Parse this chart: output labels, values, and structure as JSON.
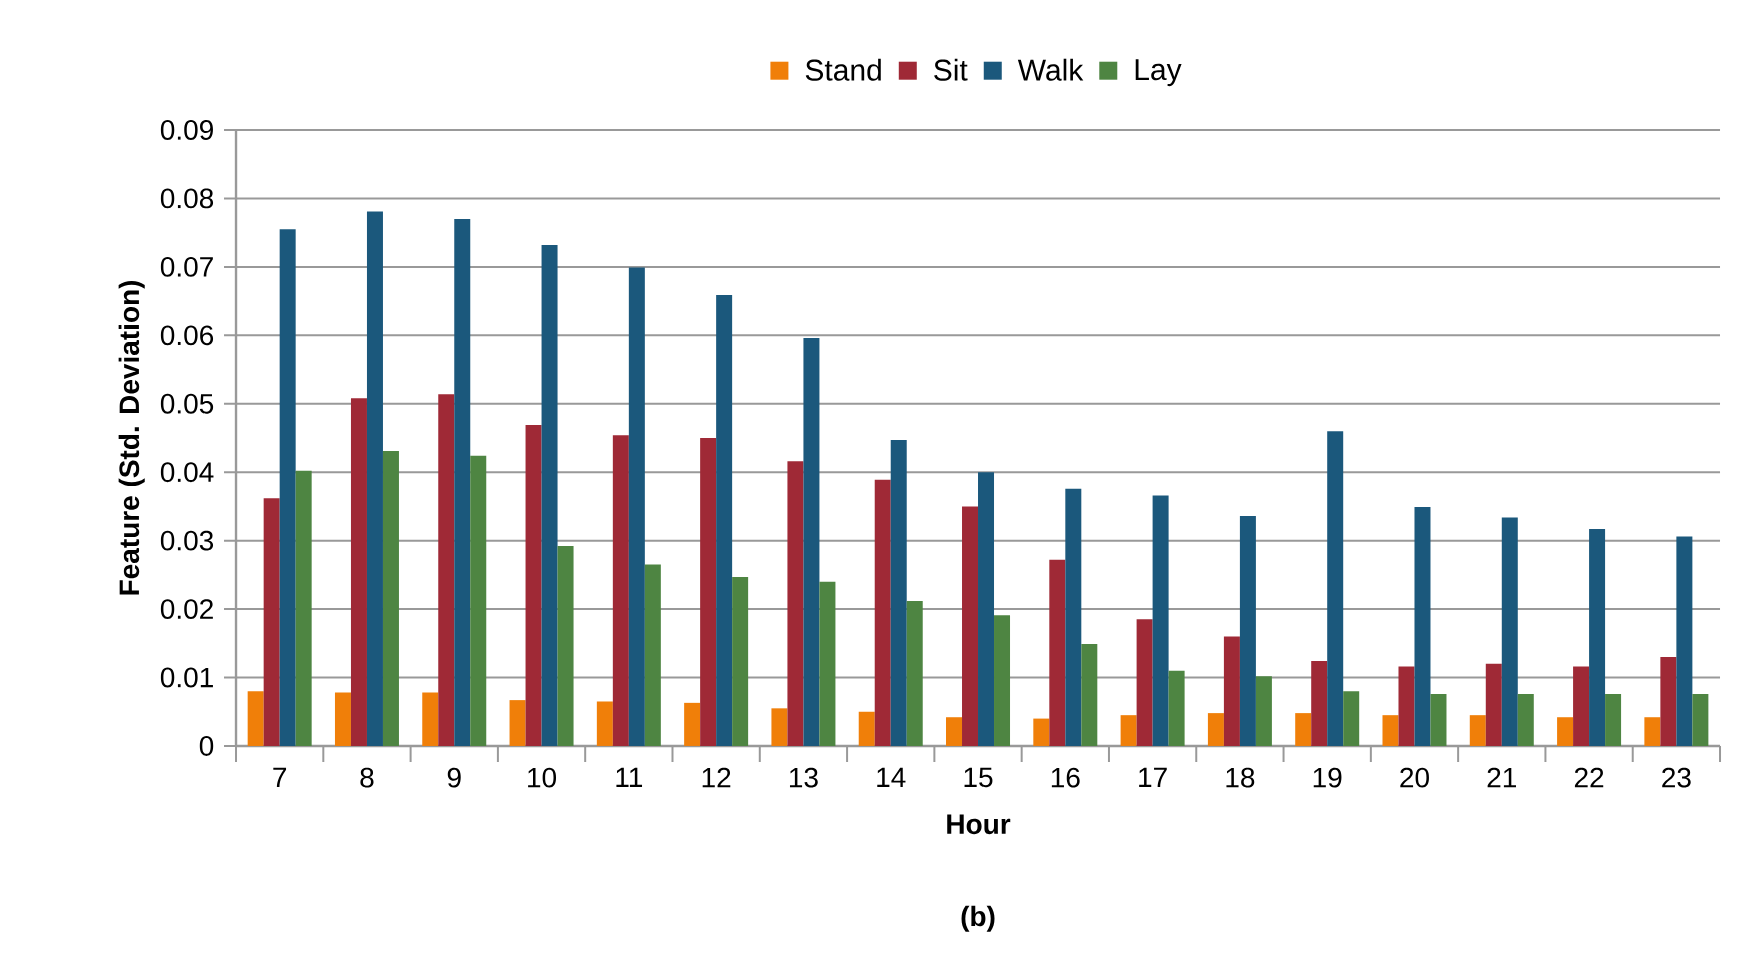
{
  "chart_data": {
    "type": "bar",
    "title": "(b)",
    "xlabel": "Hour",
    "ylabel": "Feature (Std. Deviation)",
    "categories": [
      "7",
      "8",
      "9",
      "10",
      "11",
      "12",
      "13",
      "14",
      "15",
      "16",
      "17",
      "18",
      "19",
      "20",
      "21",
      "22",
      "23"
    ],
    "series": [
      {
        "name": "Stand",
        "color": "#f07f09",
        "values": [
          0.008,
          0.0078,
          0.0078,
          0.0067,
          0.0065,
          0.0063,
          0.0055,
          0.005,
          0.0042,
          0.004,
          0.0045,
          0.0048,
          0.0048,
          0.0045,
          0.0045,
          0.0042,
          0.0042
        ]
      },
      {
        "name": "Sit",
        "color": "#9f2936",
        "values": [
          0.0362,
          0.0508,
          0.0514,
          0.0469,
          0.0454,
          0.045,
          0.0416,
          0.0389,
          0.035,
          0.0272,
          0.0185,
          0.016,
          0.0124,
          0.0116,
          0.012,
          0.0116,
          0.013
        ]
      },
      {
        "name": "Walk",
        "color": "#1b587c",
        "values": [
          0.0755,
          0.0781,
          0.077,
          0.0732,
          0.0699,
          0.0659,
          0.0596,
          0.0447,
          0.04,
          0.0376,
          0.0366,
          0.0336,
          0.046,
          0.0349,
          0.0334,
          0.0317,
          0.0306
        ]
      },
      {
        "name": "Lay",
        "color": "#4e8542",
        "values": [
          0.0402,
          0.0431,
          0.0424,
          0.0292,
          0.0265,
          0.0247,
          0.024,
          0.0212,
          0.0191,
          0.0149,
          0.011,
          0.0102,
          0.008,
          0.0076,
          0.0076,
          0.0076,
          0.0076
        ]
      }
    ],
    "ylim": [
      0,
      0.09
    ],
    "yticks": [
      0,
      0.01,
      0.02,
      0.03,
      0.04,
      0.05,
      0.06,
      0.07,
      0.08,
      0.09
    ],
    "grid": "y",
    "legend": "top"
  }
}
